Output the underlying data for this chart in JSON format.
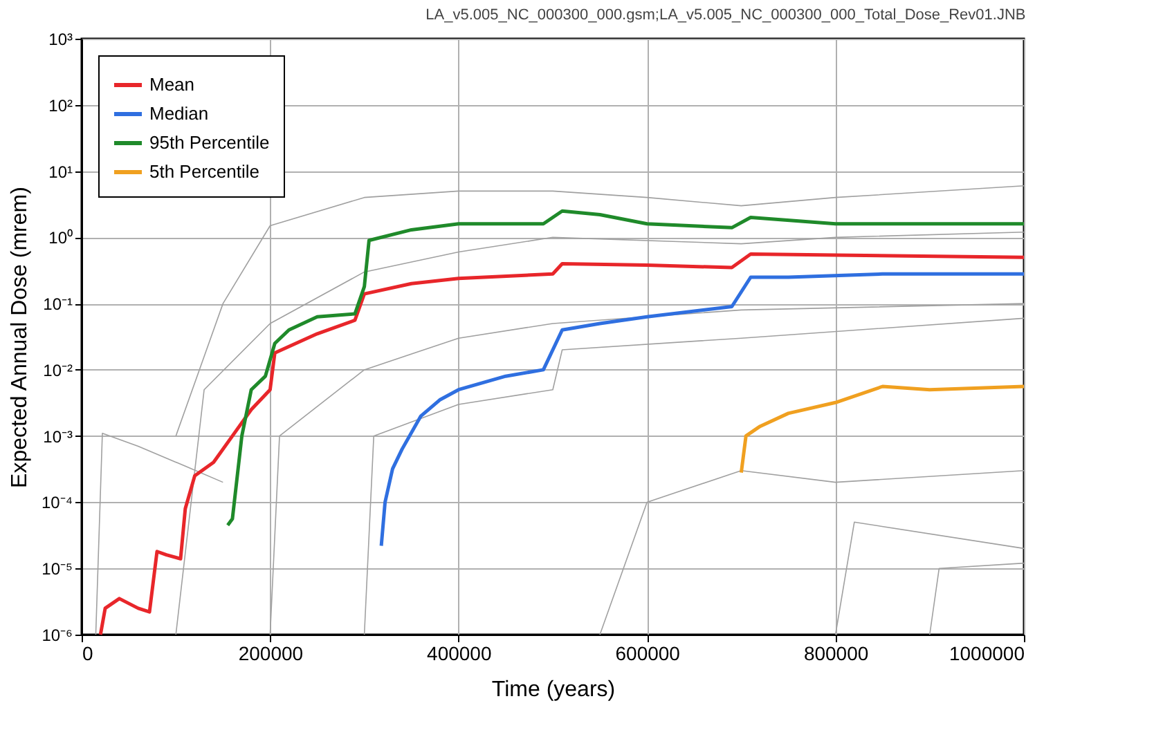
{
  "chart_data": {
    "type": "line",
    "title": "LA_v5.005_NC_000300_000.gsm;LA_v5.005_NC_000300_000_Total_Dose_Rev01.JNB",
    "xlabel": "Time (years)",
    "ylabel": "Expected Annual Dose (mrem)",
    "log": "y",
    "grid": true,
    "legend": "top left",
    "line_style": "solid",
    "xlim": [
      0,
      1000000
    ],
    "xticks": [
      0,
      200000,
      400000,
      600000,
      800000,
      1000000
    ],
    "ylim": [
      1e-06,
      1000
    ],
    "yticks": [
      {
        "value": 1e-06,
        "label": "10⁻⁶"
      },
      {
        "value": 1e-05,
        "label": "10⁻⁵"
      },
      {
        "value": 0.0001,
        "label": "10⁻⁴"
      },
      {
        "value": 0.001,
        "label": "10⁻³"
      },
      {
        "value": 0.01,
        "label": "10⁻²"
      },
      {
        "value": 0.1,
        "label": "10⁻¹"
      },
      {
        "value": 1,
        "label": "10⁰"
      },
      {
        "value": 10,
        "label": "10¹"
      },
      {
        "value": 100,
        "label": "10²"
      },
      {
        "value": 1000,
        "label": "10³"
      }
    ],
    "series": [
      {
        "color": "#a0a0a0",
        "x": [
          15000,
          22000,
          60000,
          110000,
          150000
        ],
        "values": [
          1e-06,
          0.0011,
          0.0007,
          0.00035,
          0.0002
        ]
      },
      {
        "color": "#a0a0a0",
        "x": [
          100000,
          150000,
          200000,
          300000,
          400000,
          500000,
          600000,
          700000,
          800000,
          1000000
        ],
        "values": [
          0.001,
          0.1,
          1.5,
          4,
          5,
          5,
          4,
          3,
          4,
          6
        ]
      },
      {
        "color": "#a0a0a0",
        "x": [
          550000,
          600000,
          700000,
          800000,
          1000000
        ],
        "values": [
          1e-06,
          0.0001,
          0.0003,
          0.0002,
          0.0003
        ]
      },
      {
        "color": "#a0a0a0",
        "x": [
          800000,
          820000,
          1000000
        ],
        "values": [
          1e-06,
          5e-05,
          2e-05
        ]
      },
      {
        "color": "#a0a0a0",
        "x": [
          900000,
          910000,
          1000000
        ],
        "values": [
          1e-06,
          1e-05,
          1.2e-05
        ]
      },
      {
        "color": "#a0a0a0",
        "x": [
          200000,
          210000,
          300000,
          400000,
          500000,
          700000,
          1000000
        ],
        "values": [
          1e-06,
          0.001,
          0.01,
          0.03,
          0.05,
          0.08,
          0.1
        ]
      },
      {
        "color": "#a0a0a0",
        "x": [
          300000,
          310000,
          400000,
          500000,
          510000,
          700000,
          1000000
        ],
        "values": [
          1e-06,
          0.001,
          0.003,
          0.005,
          0.02,
          0.03,
          0.06
        ]
      },
      {
        "color": "#a0a0a0",
        "x": [
          100000,
          130000,
          200000,
          300000,
          400000,
          500000,
          700000,
          800000,
          1000000
        ],
        "values": [
          1e-06,
          0.005,
          0.05,
          0.3,
          0.6,
          1,
          0.8,
          1,
          1.2
        ]
      },
      {
        "name": "Mean",
        "color": "#e8262a",
        "x": [
          20000,
          25000,
          40000,
          60000,
          72000,
          80000,
          90000,
          105000,
          110000,
          120000,
          140000,
          160000,
          180000,
          200000,
          205000,
          250000,
          290000,
          300000,
          350000,
          400000,
          500000,
          510000,
          600000,
          690000,
          710000,
          800000,
          1000000
        ],
        "values": [
          1e-06,
          2.5e-06,
          3.5e-06,
          2.5e-06,
          2.2e-06,
          1.8e-05,
          1.6e-05,
          1.4e-05,
          8e-05,
          0.00025,
          0.0004,
          0.001,
          0.0025,
          0.005,
          0.018,
          0.035,
          0.056,
          0.14,
          0.2,
          0.24,
          0.28,
          0.4,
          0.38,
          0.35,
          0.56,
          0.54,
          0.5
        ]
      },
      {
        "name": "Median",
        "color": "#2f6fe0",
        "x": [
          318000,
          322000,
          330000,
          340000,
          360000,
          380000,
          400000,
          450000,
          490000,
          510000,
          550000,
          600000,
          690000,
          710000,
          750000,
          850000,
          1000000
        ],
        "values": [
          2.2e-05,
          0.0001,
          0.00032,
          0.00063,
          0.002,
          0.0035,
          0.005,
          0.008,
          0.01,
          0.04,
          0.05,
          0.063,
          0.09,
          0.25,
          0.25,
          0.28,
          0.28
        ]
      },
      {
        "name": "95th Percentile",
        "color": "#1f8a2a",
        "x": [
          155000,
          160000,
          170000,
          180000,
          195000,
          205000,
          220000,
          250000,
          290000,
          300000,
          305000,
          350000,
          400000,
          490000,
          510000,
          550000,
          600000,
          690000,
          710000,
          800000,
          1000000
        ],
        "values": [
          4.5e-05,
          5.6e-05,
          0.001,
          0.005,
          0.008,
          0.025,
          0.04,
          0.063,
          0.07,
          0.18,
          0.9,
          1.3,
          1.6,
          1.6,
          2.5,
          2.2,
          1.6,
          1.4,
          2,
          1.6,
          1.6
        ]
      },
      {
        "name": "5th Percentile",
        "color": "#f0a020",
        "x": [
          700000,
          705000,
          720000,
          750000,
          800000,
          850000,
          900000,
          1000000
        ],
        "values": [
          0.00028,
          0.001,
          0.0014,
          0.0022,
          0.0032,
          0.0056,
          0.005,
          0.0056
        ]
      }
    ]
  }
}
